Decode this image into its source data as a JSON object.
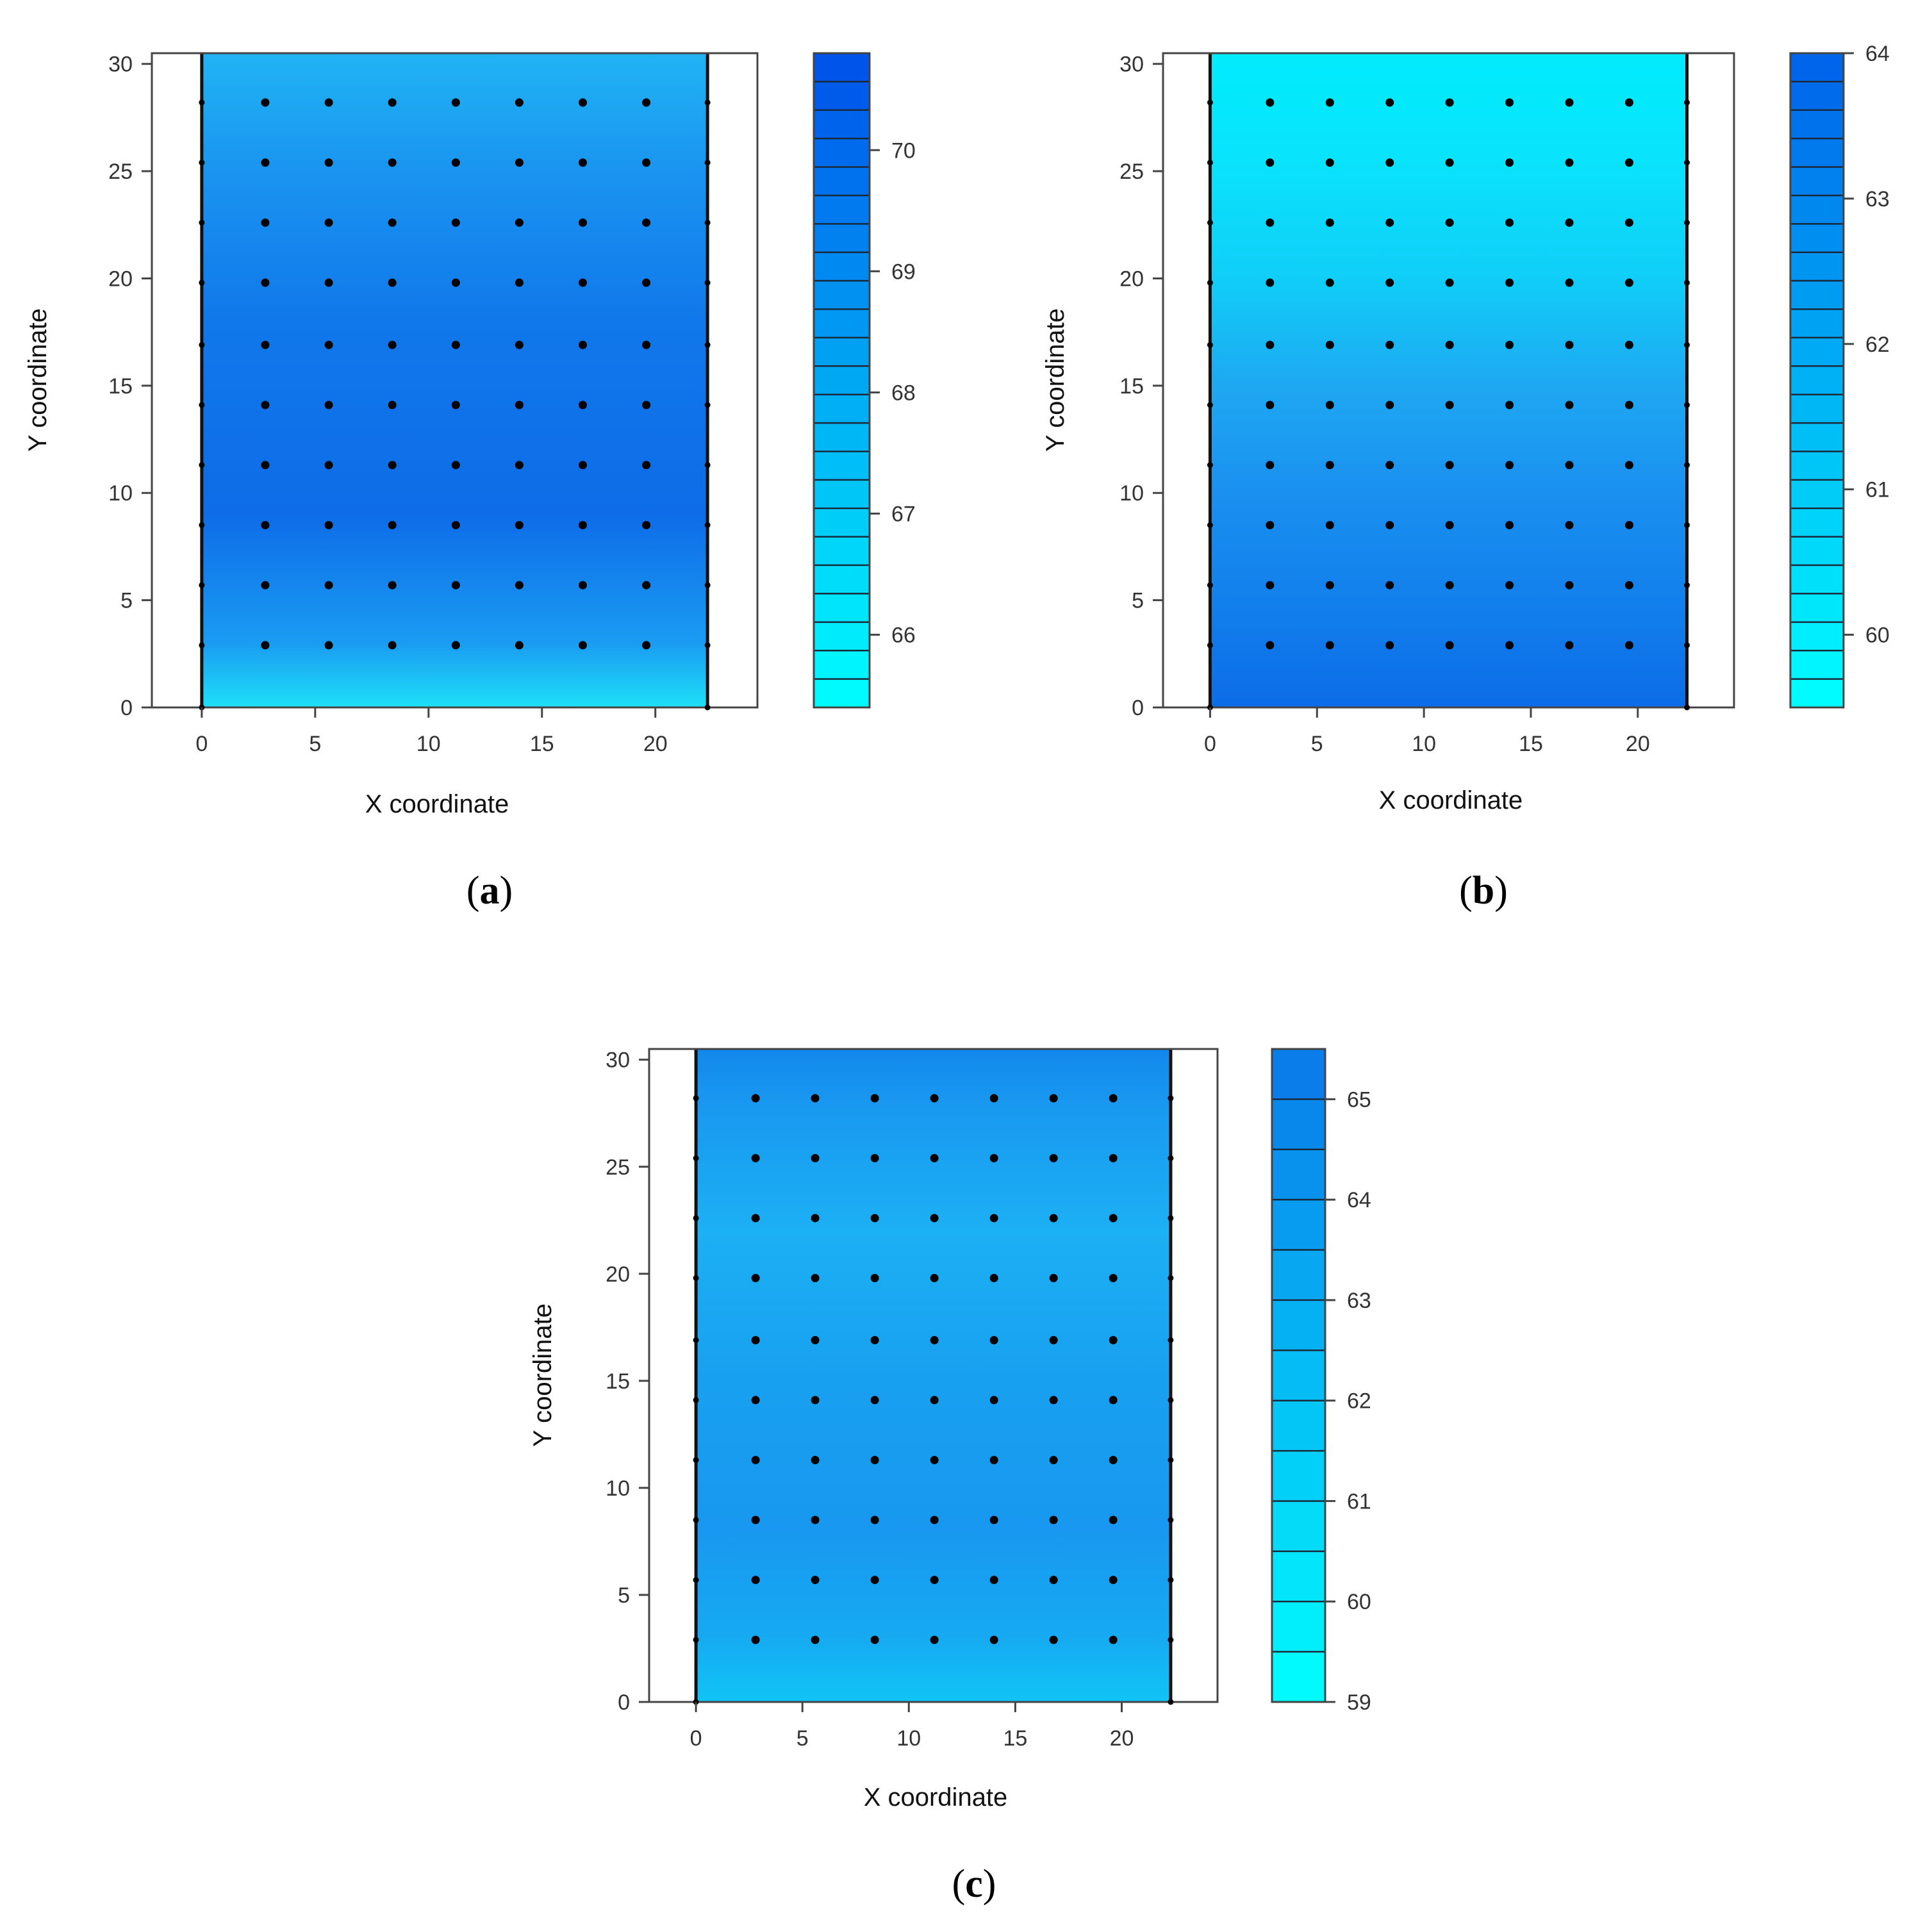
{
  "figure": {
    "panels": [
      "a",
      "b",
      "c"
    ]
  },
  "chart_data": [
    {
      "type": "heatmap",
      "panel_label": "a",
      "xlabel": "X coordinate",
      "ylabel": "Y coordinate",
      "xlim": [
        -2.2,
        24.5
      ],
      "ylim": [
        0,
        30.5
      ],
      "x_ticks": [
        0,
        5,
        10,
        15,
        20
      ],
      "y_ticks": [
        0,
        5,
        10,
        15,
        20,
        25,
        30
      ],
      "field_extent": {
        "x": [
          0,
          22.3
        ],
        "y": [
          0,
          30.5
        ]
      },
      "grid": false,
      "colorbar": {
        "range": [
          65.4,
          70.8
        ],
        "ticks": [
          66,
          67,
          68,
          69,
          70
        ],
        "levels": 23,
        "low_color": "#00ffff",
        "high_color": "#0050e8"
      },
      "field_color_stops": [
        {
          "y": 0,
          "color": "#1ee0f8"
        },
        {
          "y": 3,
          "color": "#1a9cf2"
        },
        {
          "y": 9,
          "color": "#0e6ce8"
        },
        {
          "y": 18,
          "color": "#1078ea"
        },
        {
          "y": 25,
          "color": "#1a94f0"
        },
        {
          "y": 30.5,
          "color": "#20b4f4"
        }
      ],
      "sample_points": {
        "x": [
          2.8,
          5.6,
          8.4,
          11.2,
          14.0,
          16.8,
          19.6
        ],
        "y": [
          2.9,
          5.7,
          8.5,
          11.3,
          14.1,
          16.9,
          19.8,
          22.6,
          25.4,
          28.2
        ]
      },
      "edge_points": {
        "x": [
          0,
          22.3
        ],
        "y": [
          0,
          2.9,
          5.7,
          8.5,
          11.3,
          14.1,
          16.9,
          19.8,
          22.6,
          25.4,
          28.2
        ]
      }
    },
    {
      "type": "heatmap",
      "panel_label": "b",
      "xlabel": "X coordinate",
      "ylabel": "Y coordinate",
      "xlim": [
        -2.2,
        24.5
      ],
      "ylim": [
        0,
        30.5
      ],
      "x_ticks": [
        0,
        5,
        10,
        15,
        20
      ],
      "y_ticks": [
        0,
        5,
        10,
        15,
        20,
        25,
        30
      ],
      "field_extent": {
        "x": [
          0,
          22.3
        ],
        "y": [
          0,
          30.5
        ]
      },
      "grid": false,
      "colorbar": {
        "range": [
          59.5,
          64
        ],
        "ticks": [
          60,
          61,
          62,
          63,
          64
        ],
        "levels": 23,
        "low_color": "#00ffff",
        "high_color": "#0062ea"
      },
      "field_color_stops": [
        {
          "y": 0,
          "color": "#0c6ce8"
        },
        {
          "y": 5,
          "color": "#1280ec"
        },
        {
          "y": 10,
          "color": "#1a90f0"
        },
        {
          "y": 15,
          "color": "#1ea8f2"
        },
        {
          "y": 20,
          "color": "#10cef8"
        },
        {
          "y": 25,
          "color": "#0ae2fb"
        },
        {
          "y": 30.5,
          "color": "#00ecfd"
        }
      ],
      "sample_points": {
        "x": [
          2.8,
          5.6,
          8.4,
          11.2,
          14.0,
          16.8,
          19.6
        ],
        "y": [
          2.9,
          5.7,
          8.5,
          11.3,
          14.1,
          16.9,
          19.8,
          22.6,
          25.4,
          28.2
        ]
      },
      "edge_points": {
        "x": [
          0,
          22.3
        ],
        "y": [
          0,
          2.9,
          5.7,
          8.5,
          11.3,
          14.1,
          16.9,
          19.8,
          22.6,
          25.4,
          28.2
        ]
      }
    },
    {
      "type": "heatmap",
      "panel_label": "c",
      "xlabel": "X coordinate",
      "ylabel": "Y coordinate",
      "xlim": [
        -2.2,
        24.5
      ],
      "ylim": [
        0,
        30.5
      ],
      "x_ticks": [
        0,
        5,
        10,
        15,
        20
      ],
      "y_ticks": [
        0,
        5,
        10,
        15,
        20,
        25,
        30
      ],
      "field_extent": {
        "x": [
          0,
          22.3
        ],
        "y": [
          0,
          30.5
        ]
      },
      "grid": false,
      "colorbar": {
        "range": [
          59,
          65.5
        ],
        "ticks": [
          59,
          60,
          61,
          62,
          63,
          64,
          65
        ],
        "levels": 13,
        "low_color": "#00ffff",
        "high_color": "#0a78ea"
      },
      "field_color_stops": [
        {
          "y": 0,
          "color": "#10c4f6"
        },
        {
          "y": 3,
          "color": "#16aaf2"
        },
        {
          "y": 8,
          "color": "#1898f0"
        },
        {
          "y": 15,
          "color": "#18a0f0"
        },
        {
          "y": 22,
          "color": "#1cb0f4"
        },
        {
          "y": 28,
          "color": "#1898f0"
        },
        {
          "y": 30.5,
          "color": "#1288ec"
        }
      ],
      "sample_points": {
        "x": [
          2.8,
          5.6,
          8.4,
          11.2,
          14.0,
          16.8,
          19.6
        ],
        "y": [
          2.9,
          5.7,
          8.5,
          11.3,
          14.1,
          16.9,
          19.8,
          22.6,
          25.4,
          28.2
        ]
      },
      "edge_points": {
        "x": [
          0,
          22.3
        ],
        "y": [
          0,
          2.9,
          5.7,
          8.5,
          11.3,
          14.1,
          16.9,
          19.8,
          22.6,
          25.4,
          28.2
        ]
      }
    }
  ]
}
